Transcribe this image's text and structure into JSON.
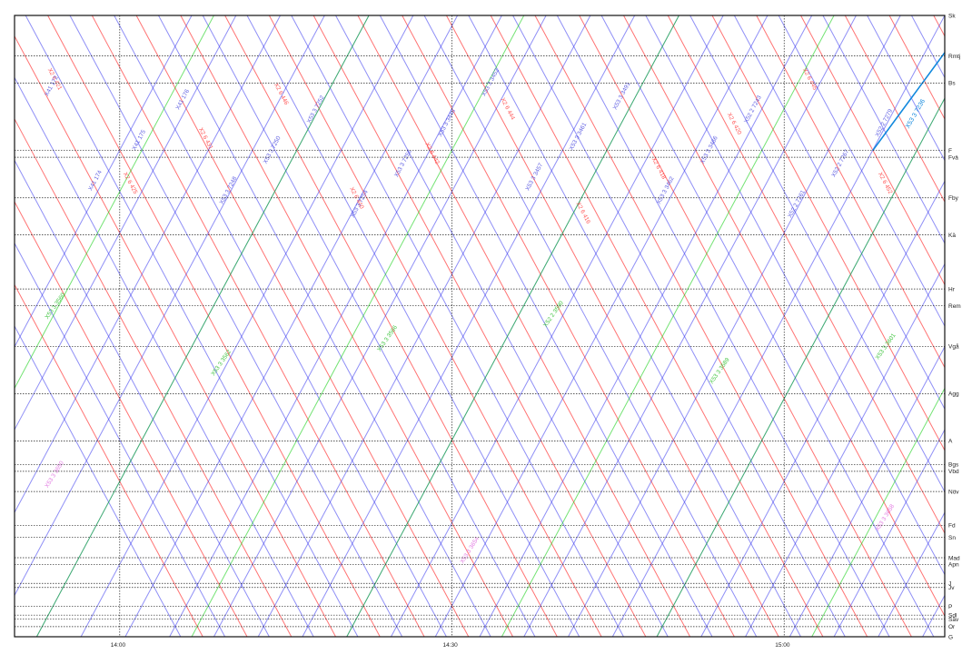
{
  "chart_data": {
    "type": "line",
    "title": "",
    "xlabel": "",
    "ylabel": "",
    "grid": true,
    "x_ticks": [
      "14:00",
      "14:30",
      "15:00"
    ],
    "stations": [
      {
        "code": "Sk",
        "km": 0
      },
      {
        "code": "Rmtj",
        "km": 6
      },
      {
        "code": "Bs",
        "km": 10
      },
      {
        "code": "F",
        "km": 20
      },
      {
        "code": "Fvä",
        "km": 21
      },
      {
        "code": "Fby",
        "km": 27
      },
      {
        "code": "Kä",
        "km": 32.5
      },
      {
        "code": "Hr",
        "km": 40.5
      },
      {
        "code": "Rem",
        "km": 43
      },
      {
        "code": "Vgå",
        "km": 49
      },
      {
        "code": "Agg",
        "km": 56
      },
      {
        "code": "A",
        "km": 63
      },
      {
        "code": "Bgs",
        "km": 66.5
      },
      {
        "code": "Vbd",
        "km": 67.5
      },
      {
        "code": "Növ",
        "km": 70.5
      },
      {
        "code": "Fd",
        "km": 75.5
      },
      {
        "code": "Sn",
        "km": 77.3
      },
      {
        "code": "Mad",
        "km": 80.3
      },
      {
        "code": "Apn",
        "km": 81.3
      },
      {
        "code": "J",
        "km": 84.1
      },
      {
        "code": "Jv",
        "km": 84.7
      },
      {
        "code": "P",
        "km": 87.5
      },
      {
        "code": "Sdl",
        "km": 88.8
      },
      {
        "code": "Säv",
        "km": 89.4
      },
      {
        "code": "Or",
        "km": 90.5
      },
      {
        "code": "G",
        "km": 92
      }
    ],
    "series": [
      {
        "color": "#ff0000",
        "kind": "red-down",
        "departures": [
          -13,
          -9,
          -5,
          -1,
          3,
          7,
          11,
          15,
          19,
          23,
          27,
          31,
          35,
          39,
          43,
          47,
          51,
          55,
          59,
          63,
          67,
          71,
          75,
          79,
          83,
          87,
          91
        ]
      },
      {
        "color": "#3333ee",
        "kind": "blue-down",
        "departures": [
          -15,
          -11,
          -7,
          -3,
          1,
          5,
          9,
          13,
          17,
          21,
          25,
          29,
          33,
          37,
          41,
          45,
          49,
          53,
          57,
          61,
          65,
          69,
          73,
          77,
          81,
          85,
          89
        ]
      },
      {
        "color": "#3333ee",
        "kind": "blue-up",
        "departures": [
          -14,
          -10,
          -6,
          -2,
          2,
          6,
          10,
          14,
          18,
          22,
          26,
          30,
          34,
          38,
          42,
          46,
          50,
          54,
          58,
          62,
          66,
          70,
          74,
          78,
          82,
          86,
          90
        ]
      },
      {
        "color": "#00cc00",
        "kind": "green-up",
        "departures": [
          -12,
          2,
          16,
          30,
          44,
          58,
          72,
          86
        ]
      }
    ],
    "highlight": {
      "color": "#1188dd",
      "label": "X53 3 7236"
    },
    "labels": {
      "red": [
        "X2 6 421",
        "X2 6 425",
        "X2 6 431",
        "X2 6 446",
        "X2 6 440",
        "X2 6 442",
        "X2 6 444",
        "X2 6 416",
        "X2 6 418",
        "X2 6 420",
        "X2 6 445",
        "X2 6 452"
      ],
      "blue": [
        "X41 172",
        "X41 174",
        "X41 175",
        "X41 176",
        "X53 3 7248",
        "X53 3 7250",
        "X53 3 7252",
        "X53 3 7254",
        "X53 3 7256",
        "X53 3 3448",
        "X53 3 3452",
        "X53 3 3457",
        "X53 3 3461",
        "X53 3 3491",
        "X53 3 3462",
        "X53 3 3466",
        "X52 2 7243",
        "X52 2 7261",
        "X52 2 7267",
        "X52 2 7279"
      ],
      "green": [
        "X53 3 3560",
        "X53 3 3562",
        "X53 3 3566",
        "X52 2 3590",
        "X53 3 3589",
        "X53 3 3601"
      ],
      "pink": [
        "X53 3 3650",
        "X53 3 3654",
        "X53 3 3658"
      ]
    }
  }
}
